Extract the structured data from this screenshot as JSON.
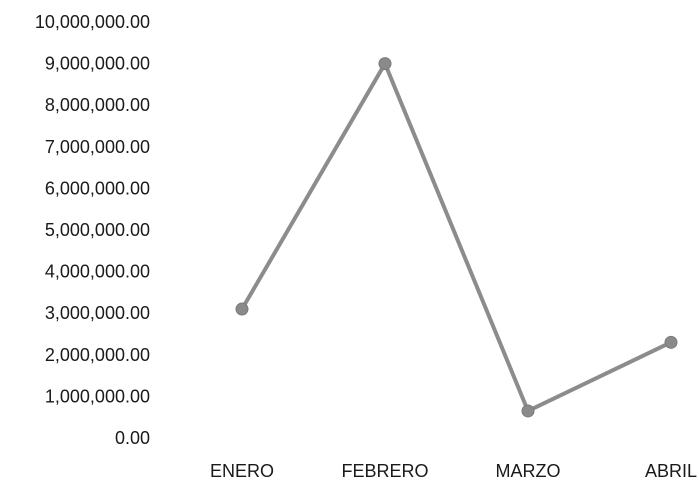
{
  "chart_data": {
    "type": "line",
    "title": "",
    "xlabel": "",
    "ylabel": "",
    "categories": [
      "ENERO",
      "FEBRERO",
      "MARZO",
      "ABRIL"
    ],
    "series": [
      {
        "values": [
          3100000,
          9000000,
          650000,
          2300000
        ],
        "color": "#8c8c8c"
      }
    ],
    "ylim": [
      0,
      10000000
    ],
    "yticks": [
      "0.00",
      "1,000,000.00",
      "2,000,000.00",
      "3,000,000.00",
      "4,000,000.00",
      "5,000,000.00",
      "6,000,000.00",
      "7,000,000.00",
      "8,000,000.00",
      "9,000,000.00",
      "10,000,000.00"
    ],
    "grid": false,
    "legend": "none"
  }
}
